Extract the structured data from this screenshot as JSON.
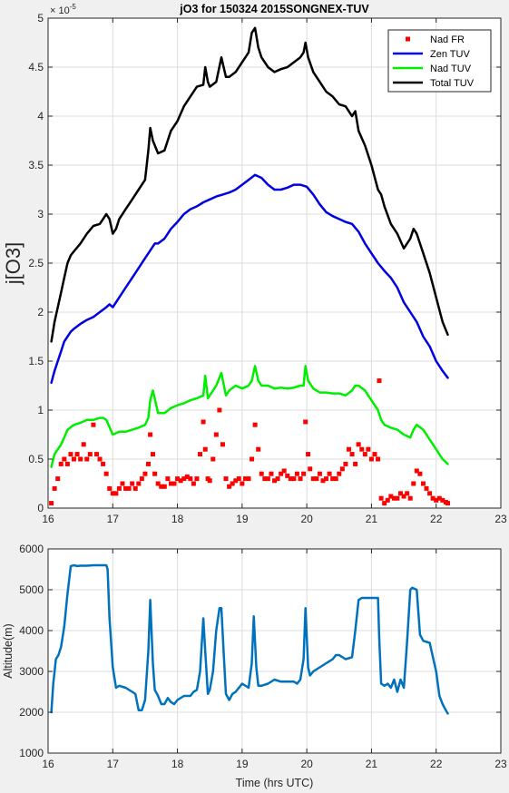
{
  "figure": {
    "background": "#f0f0f0"
  },
  "chart_data": [
    {
      "type": "line",
      "title": "jO3 for 150324 2015SONGNEX-TUV",
      "xlabel": "",
      "ylabel": "j[O3]",
      "y_exponent_label": "× 10",
      "y_exponent_power": "-5",
      "xlim": [
        16,
        23
      ],
      "ylim": [
        0,
        5
      ],
      "xticks": [
        16,
        17,
        18,
        19,
        20,
        21,
        22,
        23
      ],
      "xtick_labels": [
        "16",
        "17",
        "18",
        "19",
        "20",
        "21",
        "22",
        "23"
      ],
      "yticks": [
        0,
        0.5,
        1,
        1.5,
        2,
        2.5,
        3,
        3.5,
        4,
        4.5,
        5
      ],
      "ytick_labels": [
        "0",
        "0.5",
        "1",
        "1.5",
        "2",
        "2.5",
        "3",
        "3.5",
        "4",
        "4.5",
        "5"
      ],
      "grid": true,
      "legend_position": "top-right",
      "series": [
        {
          "name": "Nad FR",
          "style": "markers",
          "color": "#ff0000",
          "x": [
            16.05,
            16.1,
            16.15,
            16.2,
            16.25,
            16.3,
            16.35,
            16.4,
            16.45,
            16.5,
            16.55,
            16.6,
            16.65,
            16.7,
            16.75,
            16.8,
            16.85,
            16.9,
            16.95,
            17.0,
            17.05,
            17.1,
            17.15,
            17.2,
            17.25,
            17.3,
            17.35,
            17.4,
            17.45,
            17.5,
            17.55,
            17.58,
            17.62,
            17.65,
            17.7,
            17.75,
            17.8,
            17.85,
            17.9,
            17.95,
            18.0,
            18.05,
            18.1,
            18.15,
            18.2,
            18.25,
            18.3,
            18.35,
            18.4,
            18.43,
            18.47,
            18.5,
            18.55,
            18.6,
            18.65,
            18.7,
            18.75,
            18.8,
            18.85,
            18.9,
            18.95,
            19.0,
            19.05,
            19.1,
            19.15,
            19.2,
            19.25,
            19.3,
            19.35,
            19.4,
            19.45,
            19.5,
            19.55,
            19.6,
            19.65,
            19.7,
            19.75,
            19.8,
            19.85,
            19.9,
            19.95,
            19.98,
            20.02,
            20.05,
            20.1,
            20.15,
            20.2,
            20.25,
            20.3,
            20.35,
            20.4,
            20.45,
            20.5,
            20.55,
            20.6,
            20.65,
            20.7,
            20.75,
            20.8,
            20.85,
            20.9,
            20.95,
            21.0,
            21.05,
            21.1,
            21.12,
            21.15,
            21.2,
            21.25,
            21.3,
            21.35,
            21.4,
            21.45,
            21.5,
            21.55,
            21.6,
            21.65,
            21.7,
            21.75,
            21.8,
            21.85,
            21.9,
            21.95,
            22.0,
            22.05,
            22.1,
            22.15,
            22.18
          ],
          "y": [
            0.05,
            0.2,
            0.3,
            0.45,
            0.5,
            0.45,
            0.55,
            0.5,
            0.55,
            0.5,
            0.65,
            0.5,
            0.55,
            0.85,
            0.55,
            0.5,
            0.45,
            0.35,
            0.2,
            0.15,
            0.15,
            0.2,
            0.25,
            0.2,
            0.2,
            0.25,
            0.2,
            0.25,
            0.3,
            0.35,
            0.45,
            0.75,
            0.55,
            0.35,
            0.25,
            0.22,
            0.22,
            0.3,
            0.25,
            0.25,
            0.3,
            0.28,
            0.3,
            0.32,
            0.3,
            0.25,
            0.3,
            0.55,
            0.88,
            0.6,
            0.3,
            0.28,
            0.5,
            0.75,
            1.0,
            0.65,
            0.3,
            0.22,
            0.25,
            0.28,
            0.3,
            0.25,
            0.3,
            0.3,
            0.5,
            0.85,
            0.6,
            0.35,
            0.3,
            0.3,
            0.35,
            0.28,
            0.3,
            0.35,
            0.38,
            0.33,
            0.3,
            0.3,
            0.35,
            0.3,
            0.35,
            0.88,
            0.55,
            0.4,
            0.3,
            0.3,
            0.35,
            0.28,
            0.3,
            0.35,
            0.3,
            0.3,
            0.35,
            0.4,
            0.45,
            0.6,
            0.55,
            0.45,
            0.65,
            0.6,
            0.55,
            0.6,
            0.5,
            0.55,
            0.5,
            1.3,
            0.1,
            0.05,
            0.08,
            0.12,
            0.1,
            0.1,
            0.15,
            0.12,
            0.15,
            0.1,
            0.25,
            0.38,
            0.35,
            0.25,
            0.2,
            0.15,
            0.1,
            0.08,
            0.1,
            0.08,
            0.06,
            0.05
          ]
        },
        {
          "name": "Zen TUV",
          "style": "line",
          "color": "#0000e0",
          "x": [
            16.05,
            16.1,
            16.15,
            16.2,
            16.25,
            16.3,
            16.35,
            16.4,
            16.5,
            16.6,
            16.7,
            16.8,
            16.9,
            16.95,
            17.0,
            17.05,
            17.1,
            17.2,
            17.3,
            17.4,
            17.5,
            17.6,
            17.65,
            17.7,
            17.8,
            17.9,
            18.0,
            18.1,
            18.2,
            18.3,
            18.4,
            18.5,
            18.6,
            18.7,
            18.8,
            18.9,
            19.0,
            19.1,
            19.2,
            19.3,
            19.4,
            19.5,
            19.6,
            19.7,
            19.8,
            19.9,
            20.0,
            20.1,
            20.2,
            20.3,
            20.4,
            20.5,
            20.6,
            20.7,
            20.8,
            20.9,
            21.0,
            21.1,
            21.2,
            21.3,
            21.4,
            21.5,
            21.6,
            21.7,
            21.8,
            21.9,
            22.0,
            22.1,
            22.18
          ],
          "y": [
            1.28,
            1.4,
            1.5,
            1.6,
            1.7,
            1.75,
            1.8,
            1.83,
            1.88,
            1.92,
            1.95,
            2.0,
            2.05,
            2.08,
            2.05,
            2.1,
            2.15,
            2.25,
            2.35,
            2.45,
            2.55,
            2.65,
            2.7,
            2.7,
            2.75,
            2.85,
            2.92,
            3.0,
            3.05,
            3.08,
            3.12,
            3.15,
            3.18,
            3.2,
            3.22,
            3.25,
            3.3,
            3.35,
            3.4,
            3.37,
            3.3,
            3.25,
            3.25,
            3.27,
            3.3,
            3.3,
            3.28,
            3.2,
            3.1,
            3.02,
            2.98,
            2.95,
            2.92,
            2.9,
            2.82,
            2.7,
            2.6,
            2.5,
            2.42,
            2.35,
            2.25,
            2.1,
            2.0,
            1.9,
            1.75,
            1.65,
            1.5,
            1.4,
            1.33
          ]
        },
        {
          "name": "Nad TUV",
          "style": "line",
          "color": "#00ee00",
          "x": [
            16.05,
            16.1,
            16.15,
            16.2,
            16.25,
            16.3,
            16.4,
            16.5,
            16.6,
            16.7,
            16.8,
            16.85,
            16.9,
            17.0,
            17.1,
            17.2,
            17.3,
            17.4,
            17.5,
            17.55,
            17.58,
            17.62,
            17.7,
            17.8,
            17.9,
            18.0,
            18.1,
            18.2,
            18.3,
            18.4,
            18.43,
            18.47,
            18.5,
            18.55,
            18.6,
            18.68,
            18.75,
            18.8,
            18.9,
            19.0,
            19.1,
            19.15,
            19.2,
            19.25,
            19.3,
            19.4,
            19.5,
            19.6,
            19.7,
            19.8,
            19.9,
            19.95,
            19.98,
            20.02,
            20.1,
            20.2,
            20.3,
            20.4,
            20.5,
            20.6,
            20.7,
            20.75,
            20.8,
            20.9,
            21.0,
            21.1,
            21.15,
            21.2,
            21.3,
            21.4,
            21.5,
            21.6,
            21.65,
            21.7,
            21.8,
            21.9,
            22.0,
            22.1,
            22.18
          ],
          "y": [
            0.42,
            0.55,
            0.6,
            0.65,
            0.72,
            0.8,
            0.85,
            0.87,
            0.9,
            0.9,
            0.92,
            0.92,
            0.9,
            0.75,
            0.78,
            0.78,
            0.8,
            0.82,
            0.85,
            0.92,
            1.1,
            1.2,
            0.97,
            0.97,
            1.02,
            1.05,
            1.07,
            1.1,
            1.12,
            1.15,
            1.35,
            1.12,
            1.15,
            1.2,
            1.25,
            1.38,
            1.15,
            1.2,
            1.25,
            1.22,
            1.25,
            1.3,
            1.45,
            1.3,
            1.25,
            1.25,
            1.22,
            1.23,
            1.22,
            1.23,
            1.25,
            1.25,
            1.45,
            1.3,
            1.22,
            1.18,
            1.18,
            1.17,
            1.17,
            1.15,
            1.2,
            1.25,
            1.25,
            1.2,
            1.1,
            1.0,
            0.9,
            0.85,
            0.82,
            0.8,
            0.75,
            0.72,
            0.8,
            0.85,
            0.8,
            0.7,
            0.6,
            0.5,
            0.45
          ]
        },
        {
          "name": "Total TUV",
          "style": "line",
          "color": "#000000",
          "x": [
            16.05,
            16.1,
            16.15,
            16.2,
            16.25,
            16.3,
            16.35,
            16.4,
            16.5,
            16.6,
            16.7,
            16.8,
            16.9,
            16.95,
            17.0,
            17.05,
            17.1,
            17.2,
            17.3,
            17.35,
            17.4,
            17.5,
            17.55,
            17.58,
            17.62,
            17.7,
            17.8,
            17.9,
            18.0,
            18.1,
            18.2,
            18.3,
            18.4,
            18.43,
            18.47,
            18.5,
            18.6,
            18.68,
            18.75,
            18.8,
            18.9,
            19.0,
            19.1,
            19.15,
            19.2,
            19.25,
            19.3,
            19.4,
            19.5,
            19.6,
            19.7,
            19.8,
            19.9,
            19.95,
            19.98,
            20.02,
            20.1,
            20.2,
            20.3,
            20.4,
            20.5,
            20.6,
            20.7,
            20.75,
            20.8,
            20.9,
            21.0,
            21.1,
            21.15,
            21.2,
            21.3,
            21.4,
            21.5,
            21.6,
            21.65,
            21.7,
            21.8,
            21.9,
            22.0,
            22.1,
            22.18
          ],
          "y": [
            1.7,
            1.9,
            2.05,
            2.2,
            2.35,
            2.5,
            2.58,
            2.62,
            2.7,
            2.8,
            2.88,
            2.9,
            3.0,
            2.95,
            2.8,
            2.85,
            2.95,
            3.05,
            3.15,
            3.2,
            3.25,
            3.35,
            3.65,
            3.88,
            3.75,
            3.62,
            3.65,
            3.85,
            3.95,
            4.1,
            4.2,
            4.3,
            4.32,
            4.5,
            4.35,
            4.3,
            4.35,
            4.6,
            4.4,
            4.4,
            4.45,
            4.55,
            4.65,
            4.85,
            4.9,
            4.7,
            4.6,
            4.5,
            4.45,
            4.48,
            4.5,
            4.55,
            4.6,
            4.65,
            4.75,
            4.6,
            4.45,
            4.35,
            4.25,
            4.2,
            4.12,
            4.1,
            4.0,
            4.05,
            3.85,
            3.7,
            3.5,
            3.25,
            3.2,
            3.08,
            2.9,
            2.8,
            2.65,
            2.75,
            2.85,
            2.8,
            2.6,
            2.4,
            2.15,
            1.9,
            1.77
          ]
        }
      ]
    },
    {
      "type": "line",
      "title": "",
      "xlabel": "Time (hrs UTC)",
      "ylabel": "Altitude(m)",
      "xlim": [
        16,
        23
      ],
      "ylim": [
        1000,
        6000
      ],
      "xticks": [
        16,
        17,
        18,
        19,
        20,
        21,
        22,
        23
      ],
      "xtick_labels": [
        "16",
        "17",
        "18",
        "19",
        "20",
        "21",
        "22",
        "23"
      ],
      "yticks": [
        1000,
        2000,
        3000,
        4000,
        5000,
        6000
      ],
      "ytick_labels": [
        "1000",
        "2000",
        "3000",
        "4000",
        "5000",
        "6000"
      ],
      "grid": true,
      "series": [
        {
          "style": "line",
          "color": "#0072bd",
          "x": [
            16.05,
            16.08,
            16.12,
            16.16,
            16.2,
            16.25,
            16.3,
            16.35,
            16.4,
            16.45,
            16.5,
            16.6,
            16.7,
            16.8,
            16.9,
            16.92,
            16.95,
            17.0,
            17.05,
            17.1,
            17.2,
            17.3,
            17.35,
            17.4,
            17.45,
            17.5,
            17.55,
            17.58,
            17.62,
            17.65,
            17.7,
            17.75,
            17.8,
            17.85,
            17.9,
            17.95,
            18.0,
            18.1,
            18.2,
            18.25,
            18.3,
            18.35,
            18.4,
            18.43,
            18.47,
            18.5,
            18.55,
            18.6,
            18.65,
            18.68,
            18.72,
            18.75,
            18.8,
            18.85,
            18.9,
            19.0,
            19.1,
            19.15,
            19.18,
            19.22,
            19.25,
            19.3,
            19.4,
            19.5,
            19.6,
            19.7,
            19.8,
            19.85,
            19.9,
            19.95,
            19.98,
            20.02,
            20.05,
            20.1,
            20.2,
            20.3,
            20.4,
            20.45,
            20.5,
            20.6,
            20.7,
            20.75,
            20.8,
            20.85,
            20.9,
            21.0,
            21.1,
            21.12,
            21.15,
            21.2,
            21.25,
            21.3,
            21.35,
            21.4,
            21.45,
            21.5,
            21.55,
            21.6,
            21.63,
            21.7,
            21.75,
            21.8,
            21.9,
            22.0,
            22.05,
            22.1,
            22.15,
            22.18
          ],
          "y": [
            2000,
            2700,
            3300,
            3400,
            3600,
            4100,
            4900,
            5580,
            5600,
            5580,
            5590,
            5590,
            5600,
            5600,
            5600,
            5500,
            4300,
            3100,
            2600,
            2650,
            2600,
            2500,
            2450,
            2050,
            2050,
            2300,
            3500,
            4750,
            3200,
            2550,
            2400,
            2200,
            2200,
            2350,
            2250,
            2200,
            2300,
            2400,
            2400,
            2500,
            2550,
            3000,
            4300,
            3500,
            2450,
            2550,
            3000,
            4000,
            4550,
            4550,
            3300,
            2450,
            2300,
            2450,
            2500,
            2700,
            2600,
            3200,
            4350,
            3100,
            2650,
            2650,
            2700,
            2800,
            2750,
            2750,
            2750,
            2700,
            2800,
            3300,
            4550,
            3100,
            2900,
            3000,
            3100,
            3200,
            3300,
            3400,
            3400,
            3300,
            3350,
            4000,
            4750,
            4800,
            4800,
            4800,
            4800,
            3800,
            2700,
            2650,
            2700,
            2600,
            2800,
            2500,
            2800,
            2600,
            3700,
            5000,
            5050,
            5000,
            3900,
            3750,
            3700,
            3000,
            2400,
            2200,
            2050,
            1970
          ]
        }
      ]
    }
  ]
}
